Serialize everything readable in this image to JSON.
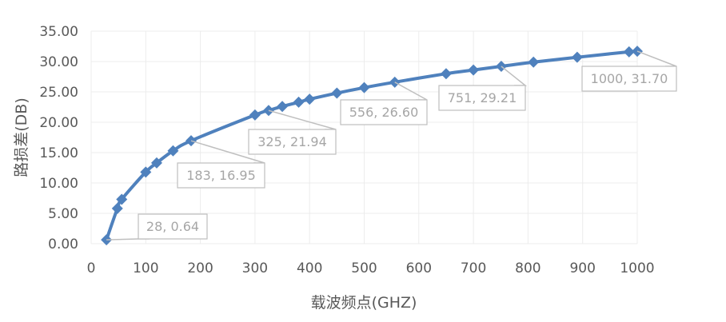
{
  "chart_data": {
    "type": "line",
    "xlabel": "载波频点(GHZ)",
    "ylabel": "路损差(DB)",
    "xlim": [
      0,
      1000
    ],
    "ylim": [
      0,
      35
    ],
    "xticks": [
      0,
      100,
      200,
      300,
      400,
      500,
      600,
      700,
      800,
      900,
      1000
    ],
    "yticks": [
      0,
      5,
      10,
      15,
      20,
      25,
      30,
      35
    ],
    "ytick_labels": [
      "0.00",
      "5.00",
      "10.00",
      "15.00",
      "20.00",
      "25.00",
      "30.00",
      "35.00"
    ],
    "grid": true,
    "color": "#4f81bd",
    "series": [
      {
        "x": [
          28,
          48,
          56,
          100,
          120,
          150,
          183,
          300,
          325,
          350,
          380,
          400,
          450,
          500,
          556,
          650,
          700,
          751,
          810,
          890,
          985,
          1000
        ],
        "y": [
          0.64,
          5.8,
          7.3,
          11.8,
          13.3,
          15.3,
          16.95,
          21.2,
          21.94,
          22.6,
          23.3,
          23.8,
          24.8,
          25.7,
          26.6,
          28.0,
          28.6,
          29.21,
          29.9,
          30.7,
          31.6,
          31.7
        ]
      }
    ],
    "annotations": [
      {
        "x": 28,
        "y": 0.64,
        "label": "28, 0.64"
      },
      {
        "x": 183,
        "y": 16.95,
        "label": "183, 16.95"
      },
      {
        "x": 325,
        "y": 21.94,
        "label": "325, 21.94"
      },
      {
        "x": 556,
        "y": 26.6,
        "label": "556, 26.60"
      },
      {
        "x": 751,
        "y": 29.21,
        "label": "751, 29.21"
      },
      {
        "x": 1000,
        "y": 31.7,
        "label": "1000, 31.70"
      }
    ]
  }
}
